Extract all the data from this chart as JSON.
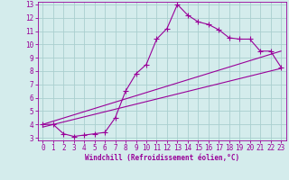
{
  "xlabel": "Windchill (Refroidissement éolien,°C)",
  "bg_color": "#d4ecec",
  "grid_color": "#aacfcf",
  "line_color": "#990099",
  "xlim": [
    -0.5,
    23.5
  ],
  "ylim": [
    2.8,
    13.2
  ],
  "xticks": [
    0,
    1,
    2,
    3,
    4,
    5,
    6,
    7,
    8,
    9,
    10,
    11,
    12,
    13,
    14,
    15,
    16,
    17,
    18,
    19,
    20,
    21,
    22,
    23
  ],
  "yticks": [
    3,
    4,
    5,
    6,
    7,
    8,
    9,
    10,
    11,
    12,
    13
  ],
  "series1_x": [
    0,
    1,
    2,
    3,
    4,
    5,
    6,
    7,
    8,
    9,
    10,
    11,
    12,
    13,
    14,
    15,
    16,
    17,
    18,
    19,
    20,
    21,
    22,
    23
  ],
  "series1_y": [
    4.0,
    4.0,
    3.3,
    3.1,
    3.2,
    3.3,
    3.4,
    4.5,
    6.5,
    7.8,
    8.5,
    10.4,
    11.2,
    13.0,
    12.2,
    11.7,
    11.5,
    11.1,
    10.5,
    10.4,
    10.4,
    9.5,
    9.5,
    8.3
  ],
  "series2_x": [
    0,
    23
  ],
  "series2_y": [
    4.0,
    9.5
  ],
  "series3_x": [
    0,
    23
  ],
  "series3_y": [
    3.8,
    8.2
  ],
  "marker": "+",
  "marker_size": 4,
  "line_width": 0.8,
  "tick_fontsize": 5.5,
  "xlabel_fontsize": 5.5
}
